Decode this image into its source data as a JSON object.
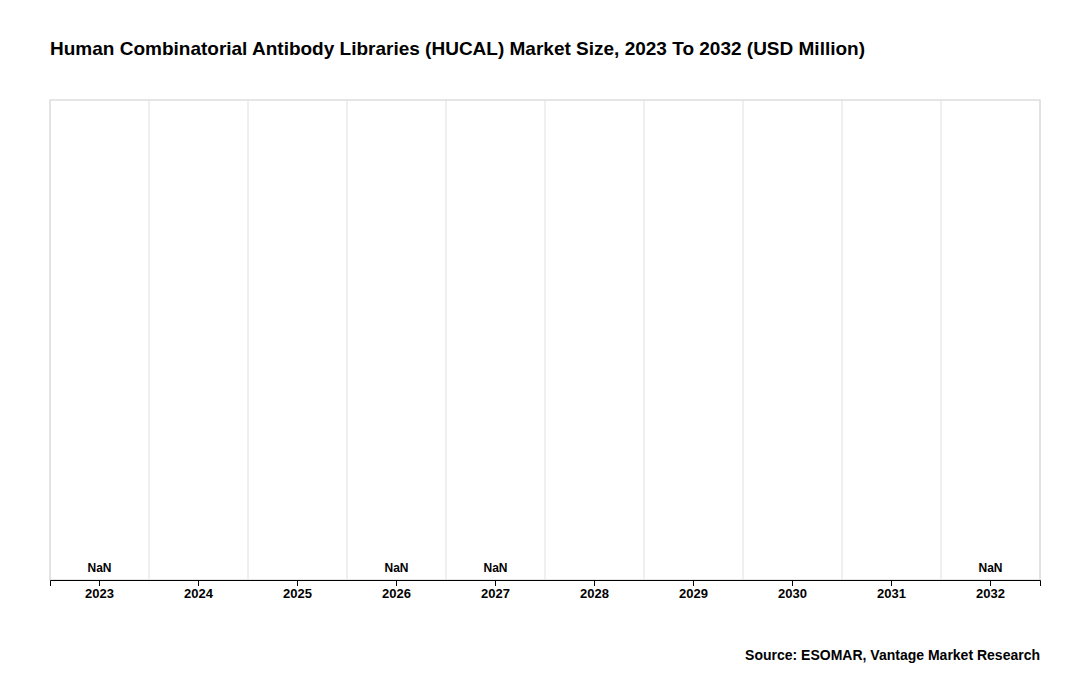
{
  "chart_data": {
    "type": "bar",
    "title": "Human Combinatorial Antibody Libraries (HUCAL) Market Size, 2023 To 2032 (USD Million)",
    "categories": [
      "2023",
      "2024",
      "2025",
      "2026",
      "2027",
      "2028",
      "2029",
      "2030",
      "2031",
      "2032"
    ],
    "values": [
      null,
      null,
      null,
      null,
      null,
      null,
      null,
      null,
      null,
      null
    ],
    "value_labels": [
      "NaN",
      null,
      null,
      "NaN",
      "NaN",
      null,
      null,
      null,
      null,
      "NaN"
    ],
    "data_labels": true,
    "ylim": [
      0,
      1
    ],
    "tick_labels": "x",
    "annotations": [
      "Source: ESOMAR, Vantage Market Research"
    ]
  }
}
